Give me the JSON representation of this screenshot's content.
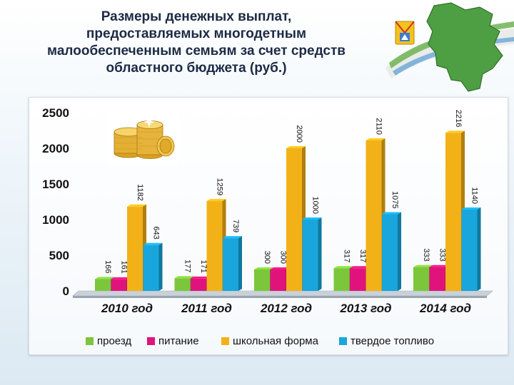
{
  "title_lines": [
    "Размеры денежных выплат,",
    "предоставляемых многодетным",
    "малообеспеченным семьям за счет средств",
    "областного бюджета (руб.)"
  ],
  "emblem_icon": "kirov-region-map-emblem",
  "coins_icon": "gold-coins-stack-icon",
  "chart_data": {
    "type": "bar",
    "title": "",
    "xlabel": "",
    "ylabel": "",
    "ylim": [
      0,
      2500
    ],
    "yticks": [
      "0",
      "500",
      "1000",
      "1500",
      "2000",
      "2500"
    ],
    "grid": false,
    "legend_position": "bottom",
    "categories": [
      "2010 год",
      "2011 год",
      "2012 год",
      "2013 год",
      "2014 год"
    ],
    "series": [
      {
        "name": "проезд",
        "color": "#7cc63b",
        "values": [
          166,
          177,
          300,
          317,
          333
        ]
      },
      {
        "name": "питание",
        "color": "#e0137d",
        "values": [
          161,
          171,
          300,
          317,
          333
        ]
      },
      {
        "name": "школьная форма",
        "color": "#f3b118",
        "values": [
          1182,
          1259,
          2000,
          2110,
          2216
        ]
      },
      {
        "name": "твердое топливо",
        "color": "#18a6dc",
        "values": [
          643,
          739,
          1000,
          1075,
          1140
        ]
      }
    ]
  }
}
